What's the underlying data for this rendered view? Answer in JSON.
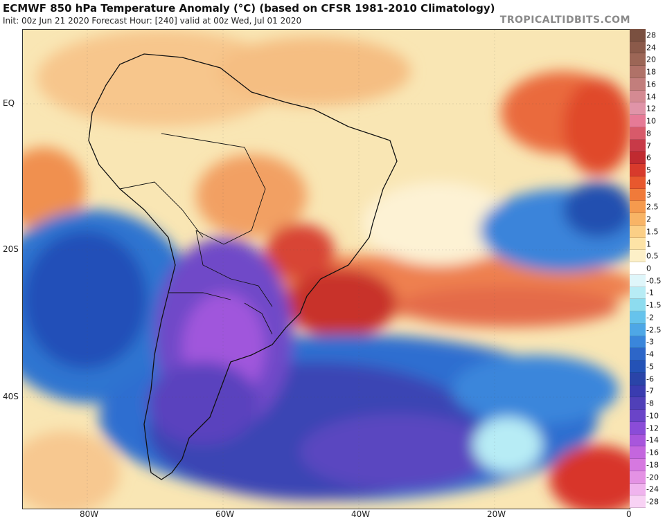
{
  "header": {
    "title": "ECMWF 850 hPa Temperature Anomaly (°C) (based on CFSR 1981-2010 Climatology)",
    "subtitle": "Init: 00z Jun 21 2020   Forecast Hour: [240]   valid at 00z Wed, Jul 01 2020",
    "brand": "TROPICALTIDBITS.COM"
  },
  "map": {
    "lat_labels": [
      "EQ",
      "20S",
      "40S"
    ],
    "lon_labels": [
      "80W",
      "60W",
      "40W",
      "20W",
      "0"
    ]
  },
  "colorbar": {
    "labels": [
      "28",
      "24",
      "20",
      "18",
      "16",
      "14",
      "12",
      "10",
      "8",
      "7",
      "6",
      "5",
      "4",
      "3",
      "2.5",
      "2",
      "1.5",
      "1",
      "0.5",
      "0",
      "-0.5",
      "-1",
      "-1.5",
      "-2",
      "-2.5",
      "-3",
      "-4",
      "-5",
      "-6",
      "-7",
      "-8",
      "-10",
      "-12",
      "-14",
      "-16",
      "-18",
      "-20",
      "-24",
      "-28"
    ],
    "colors": [
      "#7a5040",
      "#8b5a4a",
      "#9c6656",
      "#b07268",
      "#c27e7c",
      "#d48a92",
      "#e094a8",
      "#e67a96",
      "#d85a6a",
      "#c83a48",
      "#c02a30",
      "#d83a2c",
      "#e8582e",
      "#f07a3a",
      "#f59a4e",
      "#f8b466",
      "#fbcf86",
      "#fde3a6",
      "#fdf0c8",
      "#ffffff",
      "#dff6fa",
      "#b7ecf5",
      "#8ddcef",
      "#66c3ec",
      "#4ea7e6",
      "#3a86db",
      "#2d66c8",
      "#2452b6",
      "#2a44a8",
      "#3a3cb0",
      "#5040b8",
      "#6a44c8",
      "#8a4cd8",
      "#a856dc",
      "#c466de",
      "#d678e0",
      "#e492e4",
      "#f0b4ee",
      "#f8d2f4"
    ]
  }
}
